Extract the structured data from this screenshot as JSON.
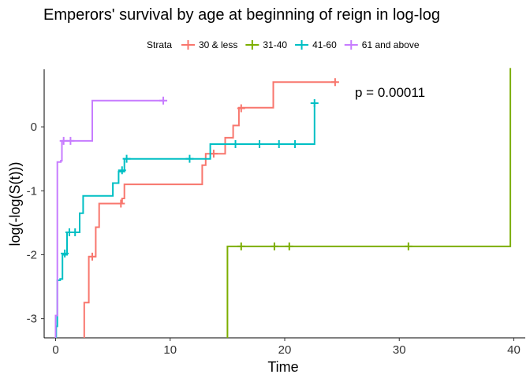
{
  "chart_data": {
    "type": "step-line",
    "title": "Emperors' survival by age at beginning of reign in log-log",
    "xlabel": "Time",
    "ylabel": "log(-log(S(t)))",
    "xlim": [
      -1.0,
      41.0
    ],
    "ylim": [
      -3.3,
      0.9
    ],
    "x_ticks": [
      0,
      10,
      20,
      30,
      40
    ],
    "y_ticks": [
      -3,
      -2,
      -1,
      0
    ],
    "legend": {
      "title": "Strata",
      "position": "top"
    },
    "annotation": "p = 0.00011",
    "grid": false,
    "series": [
      {
        "name": "30 & less",
        "color": "#F8766D",
        "steps": [
          [
            2.5,
            -3.35
          ],
          [
            2.5,
            -2.75
          ],
          [
            2.9,
            -2.75
          ],
          [
            2.9,
            -2.03
          ],
          [
            3.5,
            -2.03
          ],
          [
            3.5,
            -1.57
          ],
          [
            3.8,
            -1.57
          ],
          [
            3.8,
            -1.2
          ],
          [
            5.8,
            -1.2
          ],
          [
            5.8,
            -1.12
          ],
          [
            6.0,
            -1.12
          ],
          [
            6.0,
            -0.9
          ],
          [
            12.8,
            -0.9
          ],
          [
            12.8,
            -0.6
          ],
          [
            13.1,
            -0.6
          ],
          [
            13.1,
            -0.42
          ],
          [
            14.8,
            -0.42
          ],
          [
            14.8,
            -0.17
          ],
          [
            15.5,
            -0.17
          ],
          [
            15.5,
            0.02
          ],
          [
            16.0,
            0.02
          ],
          [
            16.0,
            0.3
          ],
          [
            19.0,
            0.3
          ],
          [
            19.0,
            0.7
          ],
          [
            24.5,
            0.7
          ]
        ],
        "censored": [
          [
            3.2,
            -2.03
          ],
          [
            5.7,
            -1.2
          ],
          [
            13.8,
            -0.42
          ],
          [
            16.2,
            0.29
          ],
          [
            24.4,
            0.7
          ]
        ]
      },
      {
        "name": "31-40",
        "color": "#7CAE00",
        "steps": [
          [
            -1.0,
            -3.32
          ],
          [
            15.0,
            -3.32
          ],
          [
            15.0,
            -1.87
          ],
          [
            39.7,
            -1.87
          ],
          [
            39.7,
            0.92
          ]
        ],
        "censored": [
          [
            16.2,
            -1.87
          ],
          [
            19.1,
            -1.87
          ],
          [
            20.4,
            -1.87
          ],
          [
            30.8,
            -1.87
          ]
        ]
      },
      {
        "name": "41-60",
        "color": "#00BFC4",
        "steps": [
          [
            0.05,
            -3.35
          ],
          [
            0.05,
            -3.12
          ],
          [
            0.15,
            -3.12
          ],
          [
            0.15,
            -2.4
          ],
          [
            0.4,
            -2.4
          ],
          [
            0.4,
            -2.38
          ],
          [
            0.6,
            -2.38
          ],
          [
            0.6,
            -2.0
          ],
          [
            1.0,
            -2.0
          ],
          [
            1.0,
            -1.65
          ],
          [
            2.1,
            -1.65
          ],
          [
            2.1,
            -1.35
          ],
          [
            2.4,
            -1.35
          ],
          [
            2.4,
            -1.08
          ],
          [
            5.0,
            -1.08
          ],
          [
            5.0,
            -0.88
          ],
          [
            5.5,
            -0.88
          ],
          [
            5.5,
            -0.7
          ],
          [
            6.0,
            -0.7
          ],
          [
            6.0,
            -0.5
          ],
          [
            13.5,
            -0.5
          ],
          [
            13.5,
            -0.27
          ],
          [
            22.6,
            -0.27
          ],
          [
            22.6,
            0.37
          ]
        ],
        "censored": [
          [
            0.8,
            -1.98
          ],
          [
            1.2,
            -1.65
          ],
          [
            1.7,
            -1.65
          ],
          [
            5.8,
            -0.68
          ],
          [
            6.2,
            -0.5
          ],
          [
            11.7,
            -0.5
          ],
          [
            15.7,
            -0.27
          ],
          [
            17.8,
            -0.27
          ],
          [
            19.5,
            -0.27
          ],
          [
            20.9,
            -0.27
          ],
          [
            22.6,
            0.37
          ]
        ]
      },
      {
        "name": "61 and above",
        "color": "#C77CFF",
        "steps": [
          [
            0.0,
            -3.35
          ],
          [
            0.0,
            -2.95
          ],
          [
            0.15,
            -2.95
          ],
          [
            0.15,
            -0.55
          ],
          [
            0.45,
            -0.55
          ],
          [
            0.45,
            -0.53
          ],
          [
            0.55,
            -0.53
          ],
          [
            0.55,
            -0.22
          ],
          [
            3.2,
            -0.22
          ],
          [
            3.2,
            0.41
          ],
          [
            9.5,
            0.41
          ]
        ],
        "censored": [
          [
            0.7,
            -0.22
          ],
          [
            1.3,
            -0.22
          ],
          [
            9.4,
            0.41
          ]
        ]
      }
    ]
  }
}
